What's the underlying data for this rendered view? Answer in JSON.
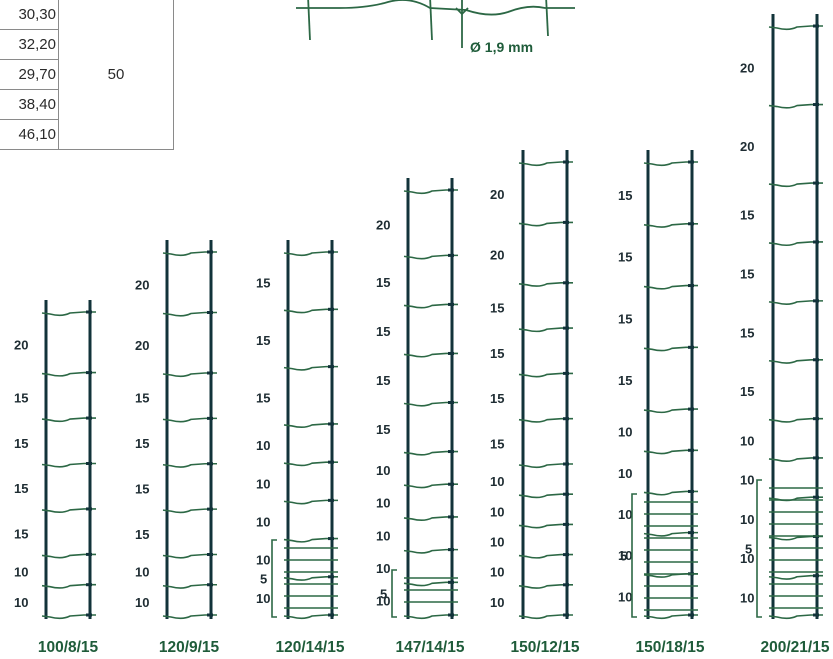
{
  "table": {
    "rows": [
      "30,30",
      "32,20",
      "29,70",
      "38,40",
      "46,10"
    ],
    "merged_value": "50"
  },
  "wire_diameter": "Ø 1,9 mm",
  "colors": {
    "post": "#12333a",
    "wire": "#2c6845",
    "bracket": "#2c6845",
    "name": "#1f5c3a"
  },
  "fences": [
    {
      "name": "100/8/15",
      "spacings": [
        "20",
        "15",
        "15",
        "15",
        "15",
        "10",
        "10"
      ],
      "bracket": null
    },
    {
      "name": "120/9/15",
      "spacings": [
        "20",
        "20",
        "15",
        "15",
        "15",
        "15",
        "10",
        "10"
      ],
      "bracket": null
    },
    {
      "name": "120/14/15",
      "spacings": [
        "15",
        "15",
        "15",
        "10",
        "10",
        "10",
        "10",
        "10"
      ],
      "bracket": "5"
    },
    {
      "name": "147/14/15",
      "spacings": [
        "20",
        "15",
        "15",
        "15",
        "15",
        "10",
        "10",
        "10",
        "10",
        "10"
      ],
      "bracket": "5"
    },
    {
      "name": "150/12/15",
      "spacings": [
        "20",
        "20",
        "15",
        "15",
        "15",
        "15",
        "10",
        "10",
        "10",
        "10",
        "10"
      ],
      "bracket": null
    },
    {
      "name": "150/18/15",
      "spacings": [
        "15",
        "15",
        "15",
        "15",
        "10",
        "10",
        "10",
        "10",
        "10"
      ],
      "bracket": "5"
    },
    {
      "name": "200/21/15",
      "spacings": [
        "20",
        "20",
        "15",
        "15",
        "15",
        "15",
        "10",
        "10",
        "10",
        "10",
        "10"
      ],
      "bracket": "5"
    }
  ]
}
